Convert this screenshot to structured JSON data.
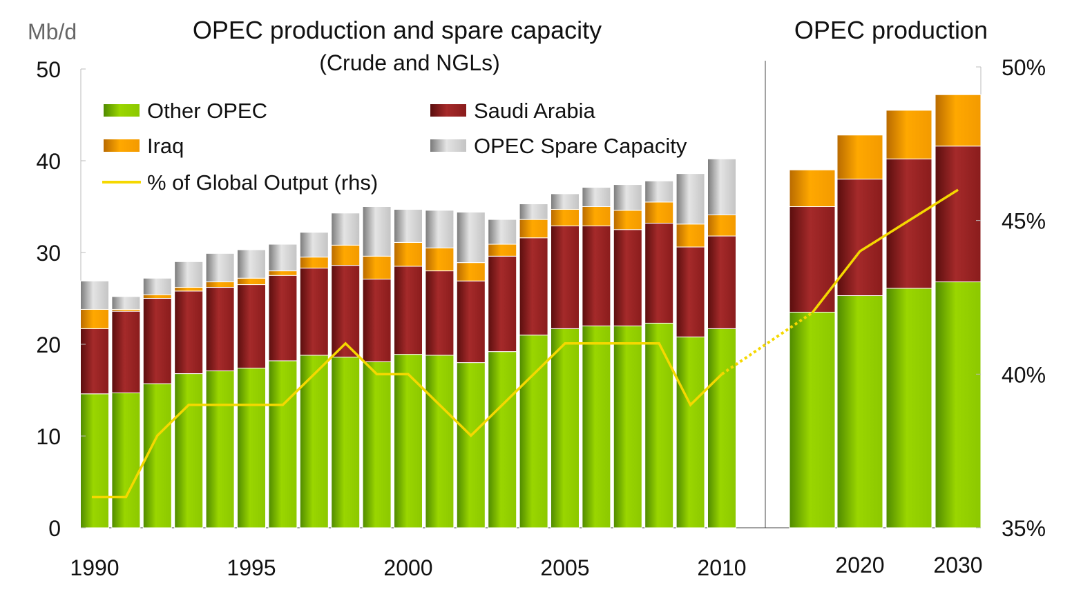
{
  "chart_data": {
    "type": "bar",
    "stacked": true,
    "title": "OPEC production and spare capacity",
    "subtitle": "(Crude and NGLs)",
    "title_right": "OPEC production",
    "ylabel": "Mb/d",
    "ylim": [
      0,
      50
    ],
    "yticks": [
      "0",
      "10",
      "20",
      "30",
      "40",
      "50"
    ],
    "y2lim": [
      35,
      50
    ],
    "y2ticks": [
      "35%",
      "40%",
      "45%",
      "50%"
    ],
    "historical_years": [
      1990,
      1991,
      1992,
      1993,
      1994,
      1995,
      1996,
      1997,
      1998,
      1999,
      2000,
      2001,
      2002,
      2003,
      2004,
      2005,
      2006,
      2007,
      2008,
      2009,
      2010
    ],
    "projection_years": [
      2015,
      2020,
      2025,
      2030
    ],
    "xtick_labels_left": [
      "1990",
      "1995",
      "2000",
      "2005",
      "2010"
    ],
    "xtick_labels_right": [
      "2020",
      "2030"
    ],
    "series": [
      {
        "name": "Other OPEC",
        "color": "#8fcc00",
        "values": [
          14.6,
          14.7,
          15.7,
          16.8,
          17.1,
          17.4,
          18.2,
          18.8,
          18.6,
          18.1,
          18.9,
          18.8,
          18.0,
          19.2,
          21.0,
          21.7,
          22.0,
          22.0,
          22.3,
          20.8,
          21.7
        ],
        "projection": [
          23.5,
          25.3,
          26.1,
          26.8
        ]
      },
      {
        "name": "Saudi Arabia",
        "color": "#8b1a1a",
        "values": [
          7.1,
          8.9,
          9.3,
          9.0,
          9.1,
          9.1,
          9.3,
          9.5,
          10.0,
          9.0,
          9.6,
          9.2,
          8.9,
          10.4,
          10.6,
          11.2,
          10.9,
          10.5,
          10.9,
          9.8,
          10.1
        ],
        "projection": [
          11.5,
          12.7,
          14.1,
          14.8
        ]
      },
      {
        "name": "Iraq",
        "color": "#f39a00",
        "values": [
          2.1,
          0.2,
          0.4,
          0.4,
          0.6,
          0.7,
          0.5,
          1.2,
          2.2,
          2.5,
          2.6,
          2.5,
          2.0,
          1.3,
          2.0,
          1.8,
          2.1,
          2.1,
          2.3,
          2.5,
          2.3
        ],
        "projection": [
          4.0,
          4.8,
          5.3,
          5.6
        ]
      },
      {
        "name": "OPEC Spare Capacity",
        "color": "#b8b8b8",
        "values": [
          3.1,
          1.4,
          1.8,
          2.8,
          3.1,
          3.1,
          2.9,
          2.7,
          3.5,
          5.4,
          3.6,
          4.1,
          5.5,
          2.7,
          1.7,
          1.7,
          2.1,
          2.8,
          2.3,
          5.5,
          6.1
        ],
        "projection": [
          0,
          0,
          0,
          0
        ]
      }
    ],
    "line": {
      "name": "% of Global Output (rhs)",
      "color": "#f5d800",
      "axis": "right",
      "values": [
        36,
        36,
        38,
        39,
        39,
        39,
        39,
        40,
        41,
        40,
        40,
        39,
        38,
        39,
        40,
        41,
        41,
        41,
        41,
        39,
        40
      ],
      "projection": [
        42,
        44,
        45,
        46
      ]
    },
    "legend_placement": "top-left"
  }
}
